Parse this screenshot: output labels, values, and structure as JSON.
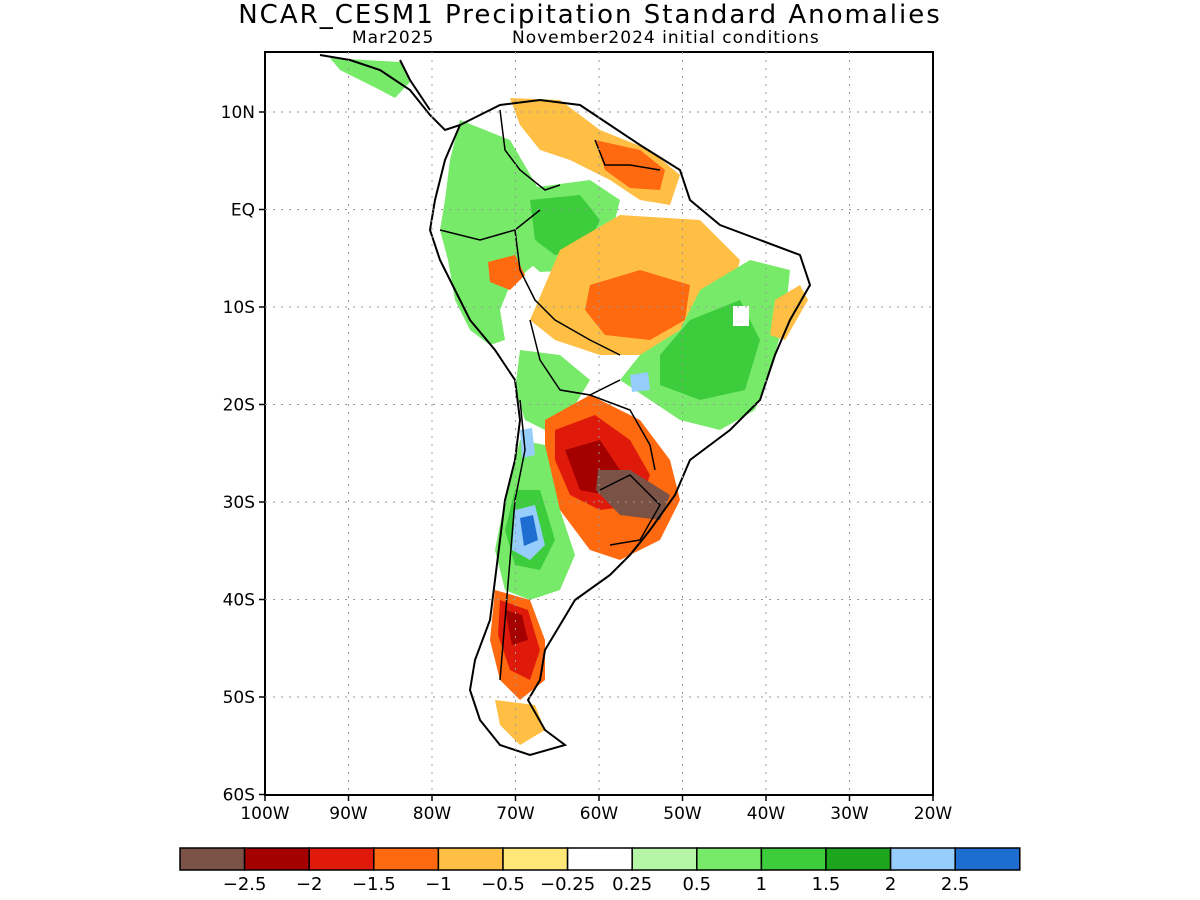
{
  "title": "NCAR_CESM1 Precipitation Standard Anomalies",
  "subtitle_left": "Mar2025",
  "subtitle_right": "November2024 initial conditions",
  "lat_ticks": [
    "10N",
    "EQ",
    "10S",
    "20S",
    "30S",
    "40S",
    "50S",
    "60S"
  ],
  "lon_ticks": [
    "100W",
    "90W",
    "80W",
    "70W",
    "60W",
    "50W",
    "40W",
    "30W",
    "20W"
  ],
  "colorbar": {
    "colors": [
      "#7a5246",
      "#a50000",
      "#e01a0a",
      "#ff6a10",
      "#ffbf44",
      "#ffe878",
      "#ffffff",
      "#b4f5a6",
      "#78ea6a",
      "#3ccc3c",
      "#1ea51e",
      "#96cdfa",
      "#1e6ed2"
    ],
    "labels": [
      "-2.5",
      "-2",
      "-1.5",
      "-1",
      "-0.5",
      "-0.25",
      "0.25",
      "0.5",
      "1",
      "1.5",
      "2",
      "2.5"
    ]
  }
}
